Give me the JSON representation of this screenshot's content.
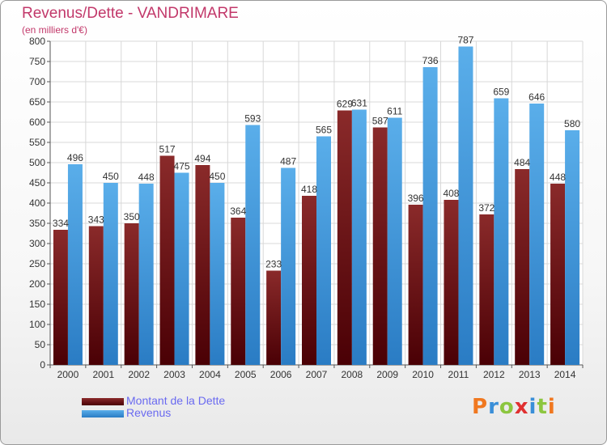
{
  "chart_data": {
    "type": "bar",
    "title": "Revenus/Dette - VANDRIMARE",
    "subtitle": "(en milliers d'€)",
    "categories": [
      "2000",
      "2001",
      "2002",
      "2003",
      "2004",
      "2005",
      "2006",
      "2007",
      "2008",
      "2009",
      "2010",
      "2011",
      "2012",
      "2013",
      "2014"
    ],
    "series": [
      {
        "name": "Montant de la Dette",
        "color": "#7a1a20",
        "values": [
          334,
          343,
          350,
          517,
          494,
          364,
          233,
          418,
          629,
          587,
          396,
          408,
          372,
          484,
          448
        ]
      },
      {
        "name": "Revenus",
        "color": "#3b97dc",
        "values": [
          496,
          450,
          448,
          475,
          450,
          593,
          487,
          565,
          631,
          611,
          736,
          787,
          659,
          646,
          580
        ]
      }
    ],
    "ylim": [
      0,
      800
    ],
    "yticks": [
      0,
      50,
      100,
      150,
      200,
      250,
      300,
      350,
      400,
      450,
      500,
      550,
      600,
      650,
      700,
      750,
      800
    ],
    "grid": true,
    "legend_position": "bottom-left"
  },
  "legend": {
    "debt_label": "Montant de la Dette",
    "revenue_label": "Revenus"
  },
  "logo": {
    "letters": [
      "P",
      "r",
      "o",
      "x",
      "i",
      "t",
      "i"
    ],
    "colors": [
      "#f07820",
      "#3a8fd8",
      "#8cc63f",
      "#e03030",
      "#3a8fd8",
      "#8cc63f",
      "#f07820"
    ]
  }
}
